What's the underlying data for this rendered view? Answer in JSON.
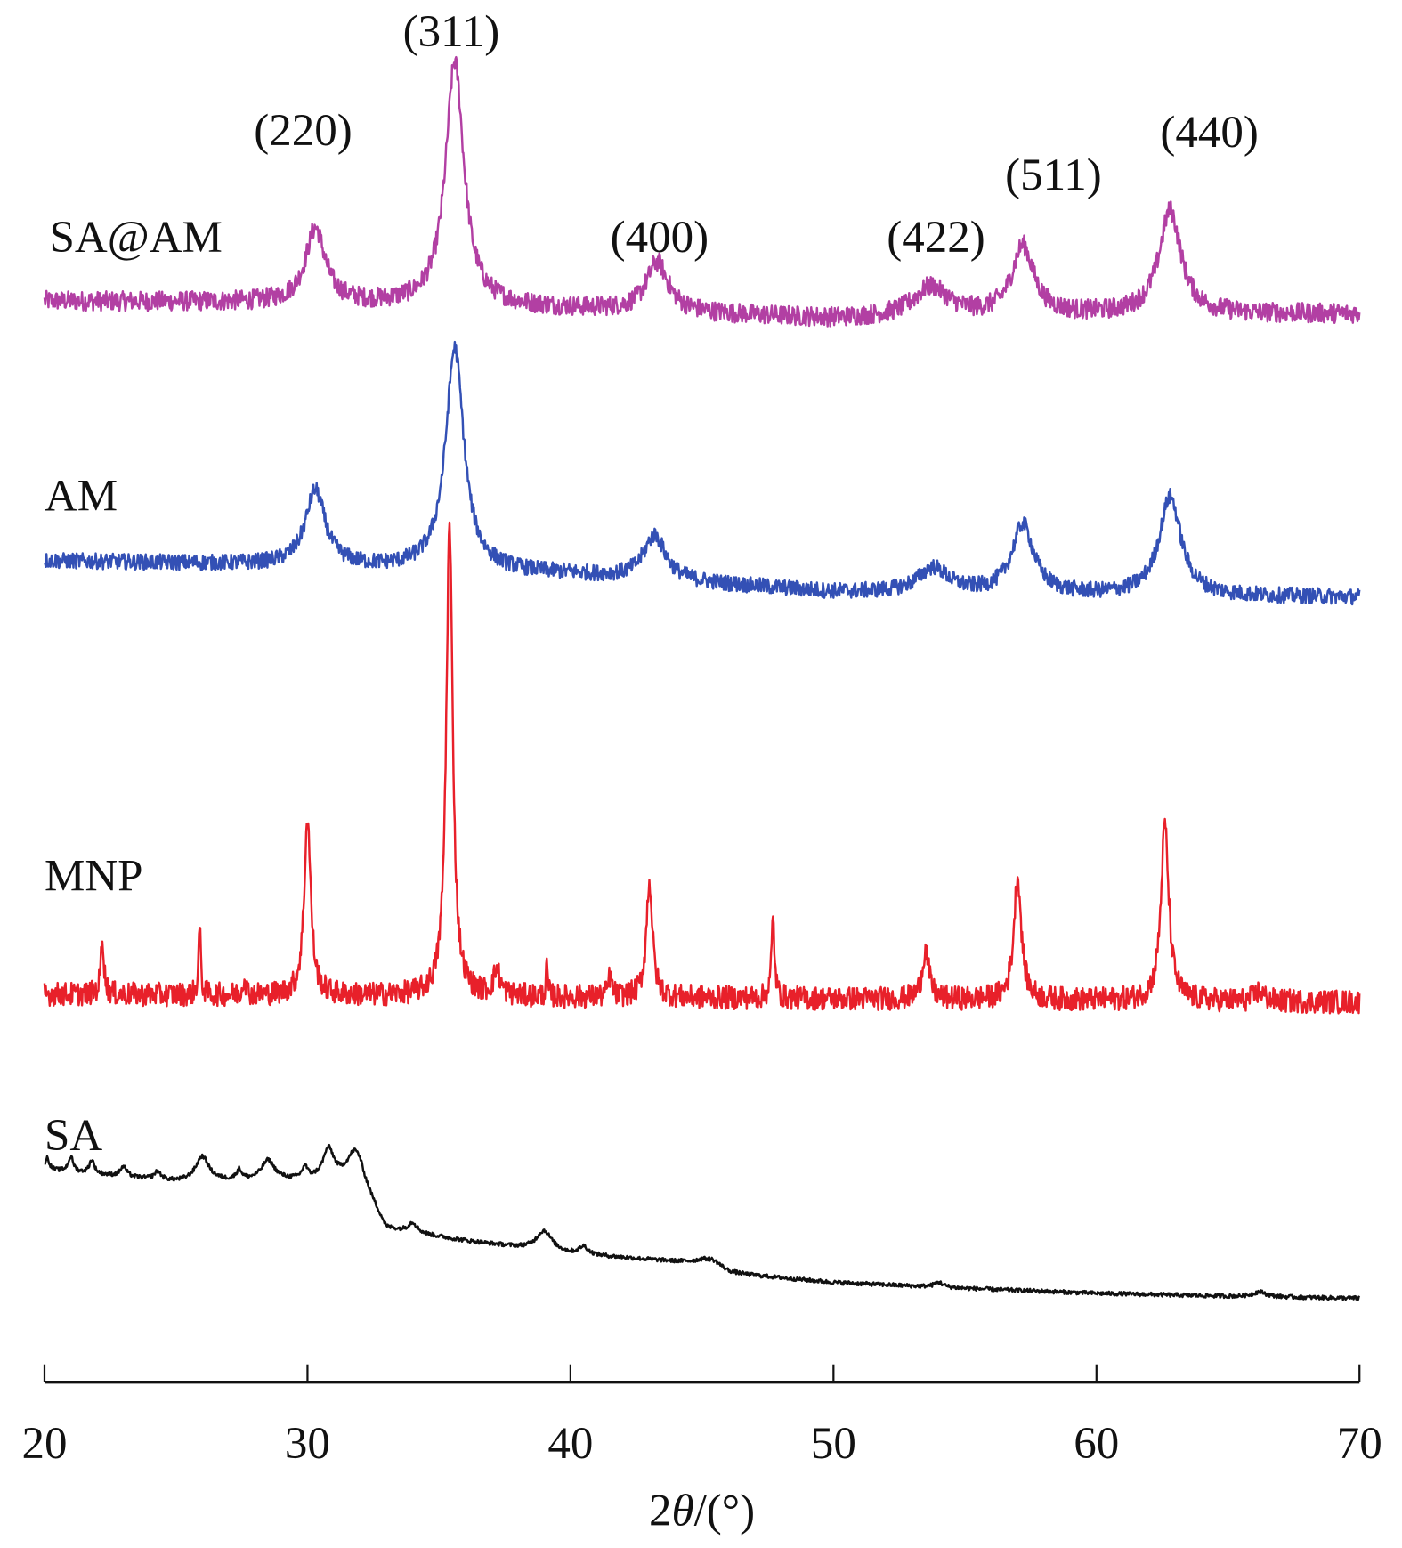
{
  "chart_data": {
    "type": "line",
    "title": "",
    "xlabel": "2θ/(°)",
    "xlabel_parts": {
      "prefix": "2",
      "theta": "θ",
      "suffix": "/(°)"
    },
    "ylabel": "",
    "xlim": [
      20,
      70
    ],
    "ylim": [
      0,
      1385
    ],
    "y_units": "a.u. (stacked, offset)",
    "xticks": [
      20,
      30,
      40,
      50,
      60,
      70
    ],
    "xtick_labels": [
      "20",
      "30",
      "40",
      "50",
      "60",
      "70"
    ],
    "grid": false,
    "legend": "inline labels left of each trace",
    "series": [
      {
        "name": "SA@AM",
        "color": "#b23fa3",
        "noise": 10,
        "baseline": [
          [
            20,
            1080
          ],
          [
            30,
            1078
          ],
          [
            40,
            1072
          ],
          [
            50,
            1062
          ],
          [
            60,
            1066
          ],
          [
            70,
            1067
          ]
        ],
        "peaks": [
          [
            30.3,
            75,
            0.45
          ],
          [
            35.6,
            247,
            0.42
          ],
          [
            43.3,
            50,
            0.5
          ],
          [
            53.7,
            30,
            0.8
          ],
          [
            57.2,
            70,
            0.5
          ],
          [
            62.8,
            105,
            0.5
          ]
        ]
      },
      {
        "name": "AM",
        "color": "#3350b5",
        "noise": 8,
        "baseline": [
          [
            20,
            817
          ],
          [
            30,
            812
          ],
          [
            40,
            803
          ],
          [
            50,
            785
          ],
          [
            60,
            782
          ],
          [
            70,
            780
          ]
        ],
        "peaks": [
          [
            30.3,
            76,
            0.45
          ],
          [
            35.6,
            225,
            0.42
          ],
          [
            43.2,
            45,
            0.5
          ],
          [
            53.8,
            25,
            0.7
          ],
          [
            57.2,
            70,
            0.5
          ],
          [
            62.8,
            100,
            0.5
          ]
        ]
      },
      {
        "name": "MNP",
        "color": "#e8202a",
        "noise": 12,
        "baseline": [
          [
            20,
            378
          ],
          [
            40,
            375
          ],
          [
            70,
            370
          ]
        ],
        "peaks": [
          [
            22.2,
            60,
            0.07
          ],
          [
            25.9,
            70,
            0.05
          ],
          [
            27.6,
            20,
            0.06
          ],
          [
            30.0,
            180,
            0.15
          ],
          [
            35.4,
            475,
            0.15
          ],
          [
            37.2,
            25,
            0.15
          ],
          [
            39.1,
            30,
            0.04
          ],
          [
            41.5,
            20,
            0.08
          ],
          [
            43.0,
            118,
            0.14
          ],
          [
            47.7,
            80,
            0.07
          ],
          [
            53.5,
            50,
            0.15
          ],
          [
            57.0,
            125,
            0.17
          ],
          [
            62.6,
            178,
            0.18
          ],
          [
            66.2,
            10,
            0.2
          ]
        ]
      },
      {
        "name": "SA",
        "color": "#111111",
        "noise": 2,
        "baseline": [
          [
            20,
            200
          ],
          [
            25,
            188
          ],
          [
            32,
            190
          ],
          [
            33,
            140
          ],
          [
            36,
            128
          ],
          [
            40,
            115
          ],
          [
            45,
            105
          ],
          [
            46,
            95
          ],
          [
            50,
            86
          ],
          [
            55,
            80
          ],
          [
            60,
            75
          ],
          [
            65,
            72
          ],
          [
            70,
            70
          ]
        ],
        "peaks": [
          [
            20.1,
            12,
            0.1
          ],
          [
            21,
            15,
            0.12
          ],
          [
            21.8,
            14,
            0.12
          ],
          [
            23,
            10,
            0.15
          ],
          [
            24.3,
            8,
            0.15
          ],
          [
            26,
            25,
            0.3
          ],
          [
            27.4,
            10,
            0.12
          ],
          [
            28.5,
            20,
            0.3
          ],
          [
            29.9,
            12,
            0.12
          ],
          [
            30.8,
            30,
            0.25
          ],
          [
            31.8,
            28,
            0.35
          ],
          [
            34,
            10,
            0.2
          ],
          [
            39,
            20,
            0.35
          ],
          [
            40.5,
            8,
            0.2
          ],
          [
            45.4,
            8,
            0.5
          ],
          [
            54,
            5,
            0.2
          ],
          [
            66.2,
            5,
            0.3
          ]
        ]
      }
    ],
    "annotations": [
      {
        "text": "(220)",
        "x": 30.0
      },
      {
        "text": "(311)",
        "x": 35.6
      },
      {
        "text": "(400)",
        "x": 43.5
      },
      {
        "text": "(422)",
        "x": 54.0
      },
      {
        "text": "(511)",
        "x": 58.5
      },
      {
        "text": "(440)",
        "x": 62.9
      }
    ]
  }
}
